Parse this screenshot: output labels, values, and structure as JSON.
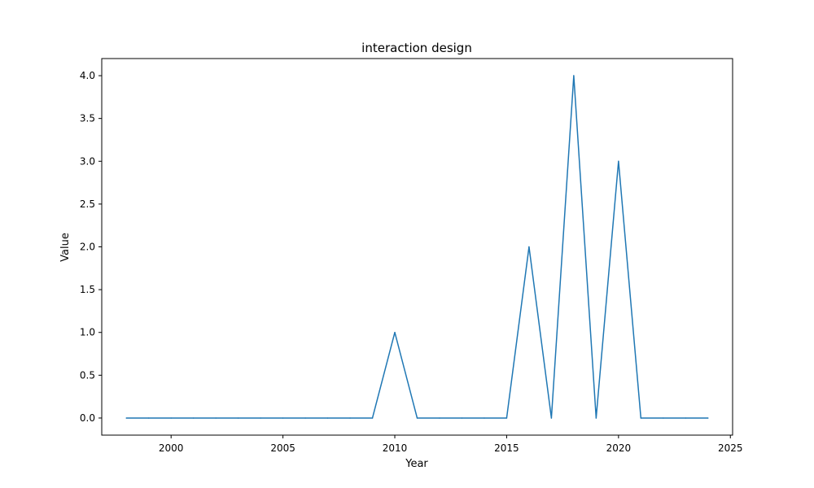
{
  "chart_data": {
    "type": "line",
    "title": "interaction design",
    "xlabel": "Year",
    "ylabel": "Value",
    "xlim": [
      1996.9,
      2025.1
    ],
    "ylim": [
      -0.2,
      4.2
    ],
    "xticks": [
      2000,
      2005,
      2010,
      2015,
      2020,
      2025
    ],
    "xtick_labels": [
      "2000",
      "2005",
      "2010",
      "2015",
      "2020",
      "2025"
    ],
    "yticks": [
      0,
      0.5,
      1,
      1.5,
      2,
      2.5,
      3,
      3.5,
      4
    ],
    "ytick_labels": [
      "0.0",
      "0.5",
      "1.0",
      "1.5",
      "2.0",
      "2.5",
      "3.0",
      "3.5",
      "4.0"
    ],
    "grid": false,
    "series": [
      {
        "color": "#1f77b4",
        "x": [
          1998,
          1999,
          2000,
          2001,
          2002,
          2003,
          2004,
          2005,
          2006,
          2007,
          2008,
          2009,
          2010,
          2011,
          2012,
          2013,
          2014,
          2015,
          2016,
          2017,
          2018,
          2019,
          2020,
          2021,
          2022,
          2023,
          2024
        ],
        "y": [
          0,
          0,
          0,
          0,
          0,
          0,
          0,
          0,
          0,
          0,
          0,
          0,
          1,
          0,
          0,
          0,
          0,
          0,
          2,
          0,
          4,
          0,
          3,
          0,
          0,
          0,
          0
        ]
      }
    ]
  }
}
